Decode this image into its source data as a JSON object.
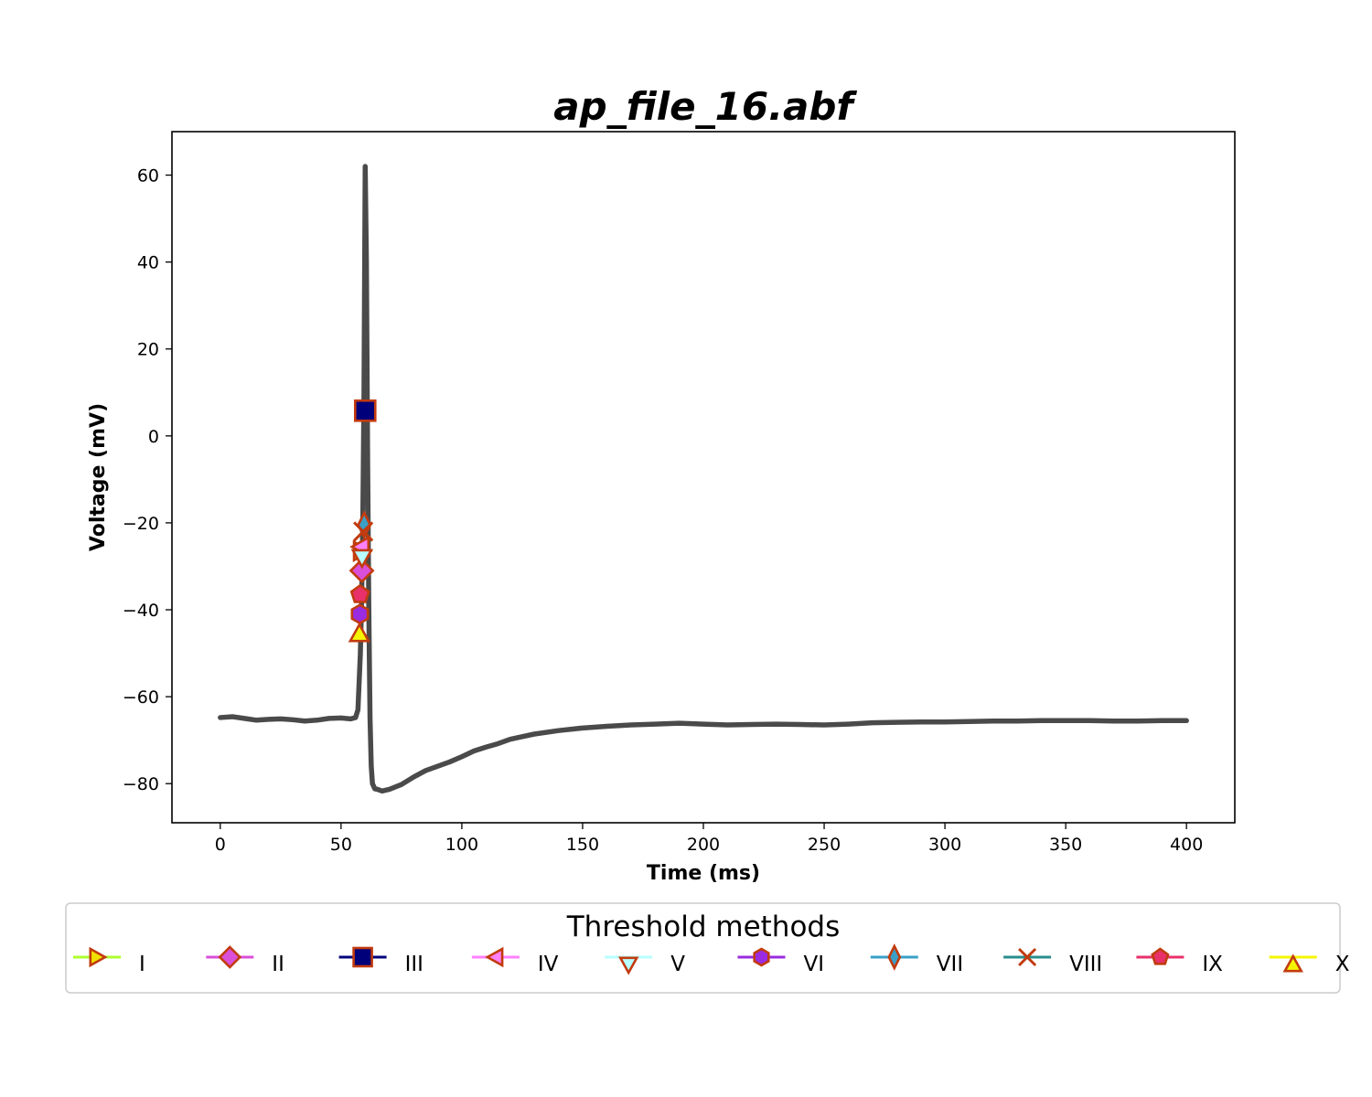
{
  "chart_data": {
    "type": "line",
    "title": "ap_file_16.abf",
    "xlabel": "Time (ms)",
    "ylabel": "Voltage (mV)",
    "xlim": [
      -20,
      420
    ],
    "ylim": [
      -89,
      70
    ],
    "xticks": [
      0,
      50,
      100,
      150,
      200,
      250,
      300,
      350,
      400
    ],
    "xtick_labels": [
      "0",
      "50",
      "100",
      "150",
      "200",
      "250",
      "300",
      "350",
      "400"
    ],
    "yticks": [
      -80,
      -60,
      -40,
      -20,
      0,
      20,
      40,
      60
    ],
    "ytick_labels": [
      "−80",
      "−60",
      "−40",
      "−20",
      "0",
      "20",
      "40",
      "60"
    ],
    "grid": false,
    "trace": {
      "color": "#4a4a4a",
      "x": [
        0,
        5,
        10,
        15,
        20,
        25,
        30,
        35,
        40,
        45,
        50,
        54,
        56,
        57,
        58,
        58.5,
        59,
        59.5,
        60,
        60.5,
        61,
        61.5,
        62,
        62.5,
        63,
        64,
        65,
        67,
        70,
        75,
        80,
        85,
        90,
        95,
        100,
        105,
        110,
        115,
        120,
        125,
        130,
        140,
        150,
        160,
        170,
        180,
        190,
        200,
        210,
        220,
        230,
        240,
        250,
        260,
        270,
        280,
        290,
        300,
        310,
        320,
        330,
        340,
        350,
        360,
        370,
        380,
        390,
        400
      ],
      "y": [
        -64.8,
        -64.6,
        -65.0,
        -65.4,
        -65.2,
        -65.1,
        -65.3,
        -65.6,
        -65.4,
        -65.0,
        -64.9,
        -65.1,
        -64.8,
        -63,
        -50,
        -38,
        -20,
        10,
        62,
        40,
        -5,
        -40,
        -65,
        -76,
        -80,
        -81.2,
        -81.3,
        -81.7,
        -81.3,
        -80.2,
        -78.5,
        -77.0,
        -76.0,
        -75.0,
        -73.8,
        -72.5,
        -71.6,
        -70.8,
        -69.8,
        -69.2,
        -68.6,
        -67.8,
        -67.2,
        -66.8,
        -66.5,
        -66.3,
        -66.1,
        -66.3,
        -66.5,
        -66.4,
        -66.3,
        -66.4,
        -66.5,
        -66.3,
        -66.0,
        -65.9,
        -65.8,
        -65.8,
        -65.7,
        -65.6,
        -65.6,
        -65.5,
        -65.5,
        -65.5,
        -65.6,
        -65.6,
        -65.5,
        -65.5
      ]
    },
    "markers": [
      {
        "name": "I",
        "x": 58.4,
        "y": -26.5,
        "marker": "triangle-right",
        "fill": "#f0e000",
        "edge": "#c23b0e",
        "line": "#adff2f",
        "size": 20
      },
      {
        "name": "II",
        "x": 58.6,
        "y": -31.0,
        "marker": "diamond",
        "fill": "#d94fd9",
        "edge": "#c23b0e",
        "line": "#d94fd9",
        "size": 22
      },
      {
        "name": "III",
        "x": 60.0,
        "y": 5.8,
        "marker": "square",
        "fill": "#00007a",
        "edge": "#c23b0e",
        "line": "#00007a",
        "size": 22
      },
      {
        "name": "IV",
        "x": 58.3,
        "y": -25.5,
        "marker": "triangle-left",
        "fill": "#ff80ff",
        "edge": "#c23b0e",
        "line": "#ff80ff",
        "size": 20
      },
      {
        "name": "V",
        "x": 58.7,
        "y": -28.0,
        "marker": "triangle-down",
        "fill": "#b8ffff",
        "edge": "#c23b0e",
        "line": "#b8ffff",
        "size": 20
      },
      {
        "name": "VI",
        "x": 57.8,
        "y": -41.0,
        "marker": "hexagon",
        "fill": "#9a2be0",
        "edge": "#c23b0e",
        "line": "#9a2be0",
        "size": 20
      },
      {
        "name": "VII",
        "x": 59.6,
        "y": -20.5,
        "marker": "thin-diamond",
        "fill": "#3aa0c8",
        "edge": "#c23b0e",
        "line": "#3aa0c8",
        "size": 22
      },
      {
        "name": "VIII",
        "x": 59.2,
        "y": -22.0,
        "marker": "x",
        "fill": "#c23b0e",
        "edge": "#c23b0e",
        "line": "#2a8c8c",
        "size": 20
      },
      {
        "name": "IX",
        "x": 57.9,
        "y": -36.5,
        "marker": "pentagon",
        "fill": "#e8306a",
        "edge": "#c23b0e",
        "line": "#e8306a",
        "size": 20
      },
      {
        "name": "X",
        "x": 57.6,
        "y": -45.5,
        "marker": "triangle-up",
        "fill": "#f5f500",
        "edge": "#c23b0e",
        "line": "#f5f500",
        "size": 20
      }
    ],
    "legend": {
      "title": "Threshold methods",
      "placement": "below-plot",
      "entries": [
        "I",
        "II",
        "III",
        "IV",
        "V",
        "VI",
        "VII",
        "VIII",
        "IX",
        "X"
      ]
    }
  }
}
